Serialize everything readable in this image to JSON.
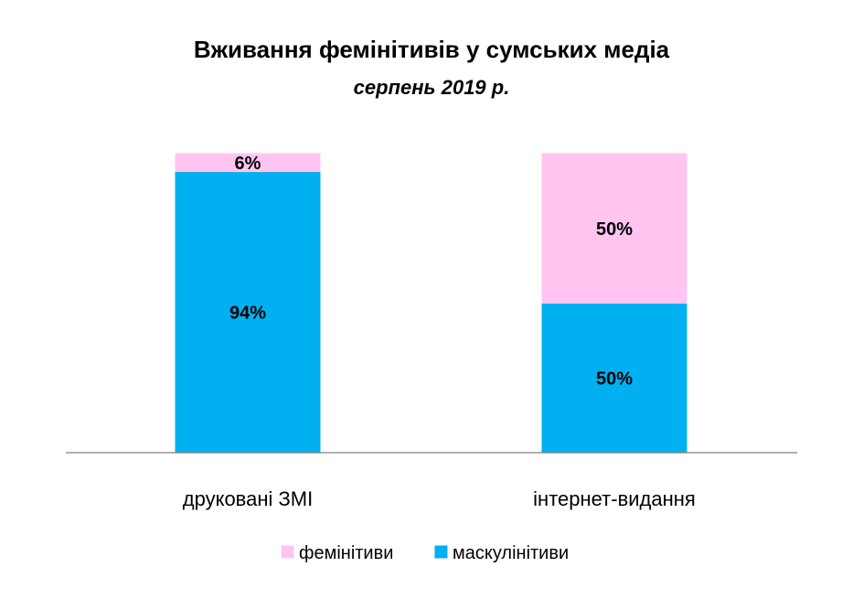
{
  "chart_data": {
    "type": "bar",
    "stacked": true,
    "title": "Вживання фемінітивів у сумських медіа",
    "subtitle": "серпень 2019 р.",
    "categories": [
      "друковані ЗМІ",
      "інтернет-видання"
    ],
    "series": [
      {
        "name": "маскулінітиви",
        "values": [
          94,
          50
        ],
        "labels": [
          "94%",
          "50%"
        ],
        "color": "#00B0F0"
      },
      {
        "name": "фемінітиви",
        "values": [
          6,
          50
        ],
        "labels": [
          "6%",
          "50%"
        ],
        "color": "#FFC5F0"
      }
    ],
    "ylim": [
      0,
      100
    ],
    "unit": "%",
    "grid": false,
    "legend": "bottom",
    "legend_order": [
      "фемінітиви",
      "маскулінітиви"
    ]
  }
}
